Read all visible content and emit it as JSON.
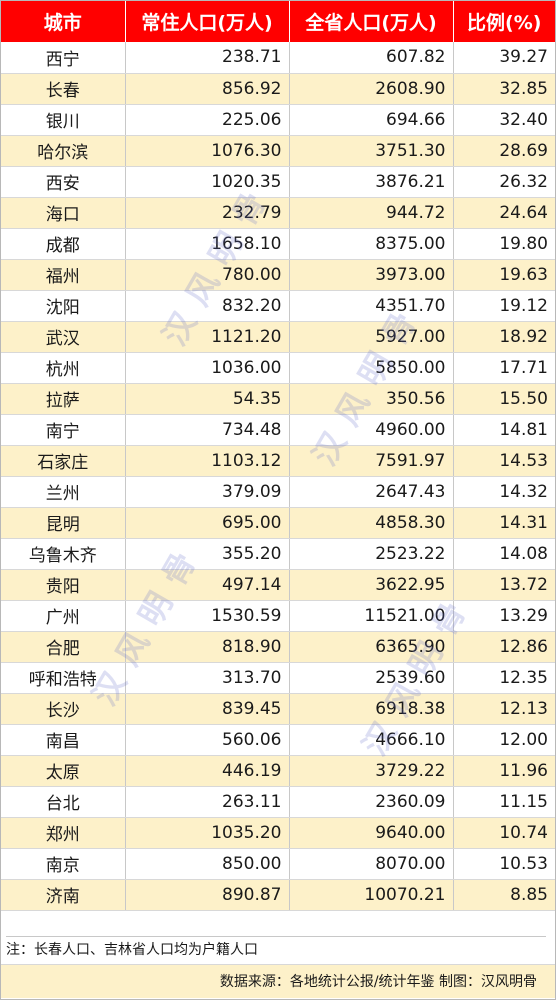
{
  "table": {
    "headers": [
      "城市",
      "常住人口(万人)",
      "全省人口(万人)",
      "比例(%)"
    ],
    "rows": [
      {
        "city": "西宁",
        "resident": "238.71",
        "province": "607.82",
        "ratio": "39.27"
      },
      {
        "city": "长春",
        "resident": "856.92",
        "province": "2608.90",
        "ratio": "32.85"
      },
      {
        "city": "银川",
        "resident": "225.06",
        "province": "694.66",
        "ratio": "32.40"
      },
      {
        "city": "哈尔滨",
        "resident": "1076.30",
        "province": "3751.30",
        "ratio": "28.69"
      },
      {
        "city": "西安",
        "resident": "1020.35",
        "province": "3876.21",
        "ratio": "26.32"
      },
      {
        "city": "海口",
        "resident": "232.79",
        "province": "944.72",
        "ratio": "24.64"
      },
      {
        "city": "成都",
        "resident": "1658.10",
        "province": "8375.00",
        "ratio": "19.80"
      },
      {
        "city": "福州",
        "resident": "780.00",
        "province": "3973.00",
        "ratio": "19.63"
      },
      {
        "city": "沈阳",
        "resident": "832.20",
        "province": "4351.70",
        "ratio": "19.12"
      },
      {
        "city": "武汉",
        "resident": "1121.20",
        "province": "5927.00",
        "ratio": "18.92"
      },
      {
        "city": "杭州",
        "resident": "1036.00",
        "province": "5850.00",
        "ratio": "17.71"
      },
      {
        "city": "拉萨",
        "resident": "54.35",
        "province": "350.56",
        "ratio": "15.50"
      },
      {
        "city": "南宁",
        "resident": "734.48",
        "province": "4960.00",
        "ratio": "14.81"
      },
      {
        "city": "石家庄",
        "resident": "1103.12",
        "province": "7591.97",
        "ratio": "14.53"
      },
      {
        "city": "兰州",
        "resident": "379.09",
        "province": "2647.43",
        "ratio": "14.32"
      },
      {
        "city": "昆明",
        "resident": "695.00",
        "province": "4858.30",
        "ratio": "14.31"
      },
      {
        "city": "乌鲁木齐",
        "resident": "355.20",
        "province": "2523.22",
        "ratio": "14.08"
      },
      {
        "city": "贵阳",
        "resident": "497.14",
        "province": "3622.95",
        "ratio": "13.72"
      },
      {
        "city": "广州",
        "resident": "1530.59",
        "province": "11521.00",
        "ratio": "13.29"
      },
      {
        "city": "合肥",
        "resident": "818.90",
        "province": "6365.90",
        "ratio": "12.86"
      },
      {
        "city": "呼和浩特",
        "resident": "313.70",
        "province": "2539.60",
        "ratio": "12.35"
      },
      {
        "city": "长沙",
        "resident": "839.45",
        "province": "6918.38",
        "ratio": "12.13"
      },
      {
        "city": "南昌",
        "resident": "560.06",
        "province": "4666.10",
        "ratio": "12.00"
      },
      {
        "city": "太原",
        "resident": "446.19",
        "province": "3729.22",
        "ratio": "11.96"
      },
      {
        "city": "台北",
        "resident": "263.11",
        "province": "2360.09",
        "ratio": "11.15"
      },
      {
        "city": "郑州",
        "resident": "1035.20",
        "province": "9640.00",
        "ratio": "10.74"
      },
      {
        "city": "南京",
        "resident": "850.00",
        "province": "8070.00",
        "ratio": "10.53"
      },
      {
        "city": "济南",
        "resident": "890.87",
        "province": "10070.21",
        "ratio": "8.85"
      }
    ]
  },
  "note": "注：长春人口、吉林省人口均为户籍人口",
  "source": "数据来源：各地统计公报/统计年鉴   制图：汉风明骨",
  "watermark": "汉风明骨",
  "colors": {
    "header_bg": "#ff0000",
    "stripe": "#fdf1c9",
    "watermark": "#6e78c8"
  }
}
